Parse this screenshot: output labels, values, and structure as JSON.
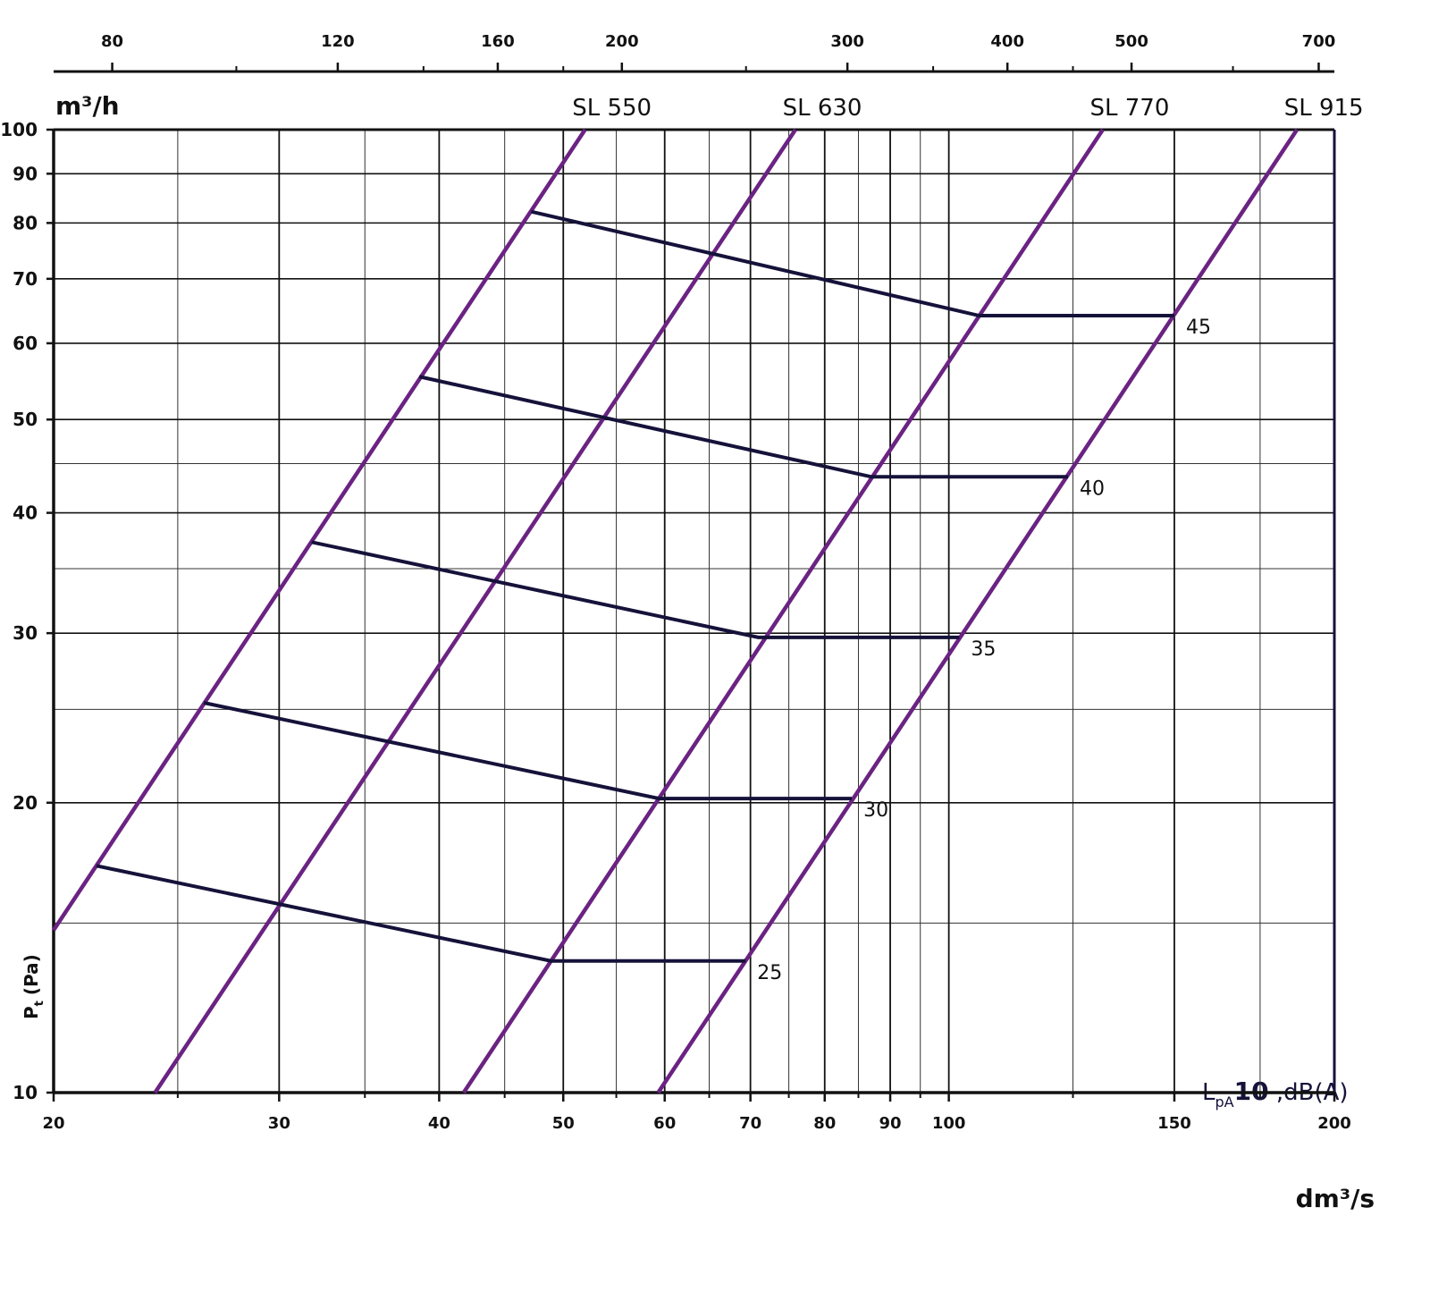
{
  "chart_data": {
    "type": "line",
    "log_x": true,
    "log_y": true,
    "xlabel": "dm³/s",
    "x2label": "m³/h",
    "ylabel": {
      "main": "P",
      "sub": "t",
      "unit": "(Pa)"
    },
    "legend_title": {
      "main": "L",
      "sub": "pA",
      "bold": "10",
      "rest": " ,dB(A)"
    },
    "xlim": [
      20,
      200
    ],
    "xticks": [
      20,
      30,
      40,
      50,
      60,
      70,
      80,
      90,
      100,
      150,
      200
    ],
    "xminor": [
      25,
      35,
      45,
      55,
      65,
      75,
      85,
      95,
      125,
      175
    ],
    "ylim": [
      10,
      100
    ],
    "yticks": [
      10,
      20,
      30,
      40,
      50,
      60,
      70,
      80,
      90,
      100
    ],
    "yminor": [
      15,
      25,
      35,
      45
    ],
    "x2lim": [
      72,
      720
    ],
    "x2ticks": [
      80,
      120,
      160,
      200,
      300,
      400,
      500,
      700
    ],
    "x2minor": [
      100,
      140,
      180,
      250,
      350,
      450,
      600
    ],
    "grid": true,
    "series": [
      {
        "name": "SL 550",
        "color": "#6a2382",
        "x": [
          20,
          52
        ],
        "values": [
          14.75,
          100
        ]
      },
      {
        "name": "SL 630",
        "color": "#6a2382",
        "x": [
          24,
          75.9
        ],
        "values": [
          10,
          100
        ]
      },
      {
        "name": "SL 770",
        "color": "#6a2382",
        "x": [
          41.8,
          131.9
        ],
        "values": [
          10,
          100
        ]
      },
      {
        "name": "SL 915",
        "color": "#6a2382",
        "x": [
          59.3,
          187
        ],
        "values": [
          10,
          100
        ]
      }
    ],
    "noise_series": [
      {
        "name": "45",
        "color": "#15123a",
        "x": [
          47.2,
          105.6,
          150
        ],
        "values": [
          82.2,
          64.1,
          64.1
        ]
      },
      {
        "name": "40",
        "color": "#15123a",
        "x": [
          38.6,
          87,
          123.9
        ],
        "values": [
          55.4,
          43.6,
          43.6
        ]
      },
      {
        "name": "35",
        "color": "#15123a",
        "x": [
          31.8,
          71,
          101.9
        ],
        "values": [
          37.3,
          29.7,
          29.7
        ]
      },
      {
        "name": "30",
        "color": "#15123a",
        "x": [
          26.2,
          59.4,
          84
        ],
        "values": [
          25.4,
          20.2,
          20.2
        ]
      },
      {
        "name": "25",
        "color": "#15123a",
        "x": [
          21.6,
          48.9,
          69.4
        ],
        "values": [
          17.2,
          13.7,
          13.7
        ]
      }
    ]
  }
}
